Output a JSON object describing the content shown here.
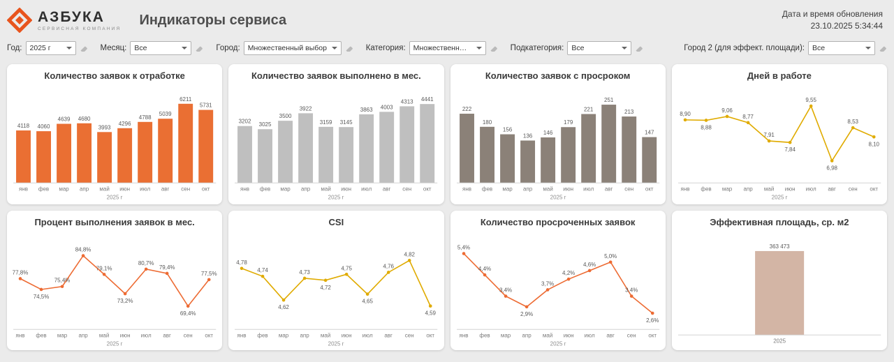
{
  "header": {
    "logo_title": "АЗБУКА",
    "logo_subtitle": "СЕРВИСНАЯ КОМПАНИЯ",
    "page_title": "Индикаторы сервиса",
    "update_label": "Дата и время обновления",
    "update_timestamp": "23.10.2025  5:34:44"
  },
  "filters": [
    {
      "label": "Год:",
      "value": "2025 г"
    },
    {
      "label": "Месяц:",
      "value": "Все"
    },
    {
      "label": "Город:",
      "value": "Множественный выбор"
    },
    {
      "label": "Категория:",
      "value": "Множественный ..."
    },
    {
      "label": "Подкатегория:",
      "value": "Все"
    },
    {
      "label": "Город 2 (для эффект. площади):",
      "value": "Все"
    }
  ],
  "colors": {
    "accent_orange": "#e8541d",
    "bar_orange": "#ea6f33",
    "bar_gray": "#bfbfbf",
    "bar_taupe": "#8b8178",
    "line_gold": "#e0ab00",
    "line_orange": "#ed6b33",
    "bar_tan": "#d3b5a5"
  },
  "chart_data": [
    {
      "type": "bar",
      "title": "Количество заявок к отработке",
      "categories": [
        "янв",
        "фев",
        "мар",
        "апр",
        "май",
        "июн",
        "июл",
        "авг",
        "сен",
        "окт"
      ],
      "values": [
        4118,
        4060,
        4639,
        4680,
        3993,
        4296,
        4788,
        5039,
        6211,
        5731
      ],
      "value_labels": [
        "4118",
        "4060",
        "4639",
        "4680",
        "3993",
        "4296",
        "4788",
        "5039",
        "6211",
        "5731"
      ],
      "xlabel": "2025 г",
      "color": "#ea6f33",
      "ylim": [
        0,
        6900
      ]
    },
    {
      "type": "bar",
      "title": "Количество заявок выполнено в мес.",
      "categories": [
        "янв",
        "фев",
        "мар",
        "апр",
        "май",
        "июн",
        "июл",
        "авг",
        "сен",
        "окт"
      ],
      "values": [
        3202,
        3025,
        3500,
        3922,
        3159,
        3145,
        3863,
        4003,
        4313,
        4441
      ],
      "value_labels": [
        "3202",
        "3025",
        "3500",
        "3922",
        "3159",
        "3145",
        "3863",
        "4003",
        "4313",
        "4441"
      ],
      "xlabel": "2025 г",
      "color": "#bfbfbf",
      "ylim": [
        0,
        4950
      ]
    },
    {
      "type": "bar",
      "title": "Количество заявок с просроком",
      "categories": [
        "янв",
        "фев",
        "мар",
        "апр",
        "май",
        "июн",
        "июл",
        "авг",
        "сен",
        "окт"
      ],
      "values": [
        222,
        180,
        156,
        136,
        146,
        179,
        221,
        251,
        213,
        147
      ],
      "value_labels": [
        "222",
        "180",
        "156",
        "136",
        "146",
        "179",
        "221",
        "251",
        "213",
        "147"
      ],
      "xlabel": "2025 г",
      "color": "#8b8178",
      "ylim": [
        0,
        282
      ]
    },
    {
      "type": "line",
      "title": "Дней в работе",
      "categories": [
        "янв",
        "фев",
        "мар",
        "апр",
        "май",
        "июн",
        "июл",
        "авг",
        "сен",
        "окт"
      ],
      "values": [
        8.9,
        8.88,
        9.06,
        8.77,
        7.91,
        7.84,
        9.55,
        6.98,
        8.53,
        8.1
      ],
      "value_labels": [
        "8,90",
        "8,88",
        "9,06",
        "8,77",
        "7,91",
        "7,84",
        "9,55",
        "6,98",
        "8,53",
        "8,10"
      ],
      "xlabel": "2025 г",
      "color": "#e0ab00",
      "ylim": [
        6.2,
        10.2
      ]
    },
    {
      "type": "line",
      "title": "Процент выполнения заявок в мес.",
      "categories": [
        "янв",
        "фев",
        "мар",
        "апр",
        "май",
        "июн",
        "июл",
        "авг",
        "сен",
        "окт"
      ],
      "values": [
        77.8,
        74.5,
        75.4,
        84.8,
        79.1,
        73.2,
        80.7,
        79.4,
        69.4,
        77.5
      ],
      "value_labels": [
        "77,8%",
        "74,5%",
        "75,4%",
        "84,8%",
        "79,1%",
        "73,2%",
        "80,7%",
        "79,4%",
        "69,4%",
        "77,5%"
      ],
      "xlabel": "2025 г",
      "color": "#ed6b33",
      "ylim": [
        64,
        90
      ]
    },
    {
      "type": "line",
      "title": "CSI",
      "categories": [
        "янв",
        "фев",
        "мар",
        "апр",
        "май",
        "июн",
        "июл",
        "авг",
        "сен",
        "окт"
      ],
      "values": [
        4.78,
        4.74,
        4.62,
        4.73,
        4.72,
        4.75,
        4.65,
        4.76,
        4.82,
        4.59
      ],
      "value_labels": [
        "4,78",
        "4,74",
        "4,62",
        "4,73",
        "4,72",
        "4,75",
        "4,65",
        "4,76",
        "4,82",
        "4,59"
      ],
      "xlabel": "2025 г",
      "color": "#e0ab00",
      "ylim": [
        4.5,
        4.93
      ]
    },
    {
      "type": "line",
      "title": "Количество просроченных заявок",
      "categories": [
        "янв",
        "фев",
        "мар",
        "апр",
        "май",
        "июн",
        "июл",
        "авг",
        "сен",
        "окт"
      ],
      "values": [
        5.4,
        4.4,
        3.4,
        2.9,
        3.7,
        4.2,
        4.6,
        5.0,
        3.4,
        2.6
      ],
      "value_labels": [
        "5,4%",
        "4,4%",
        "3,4%",
        "2,9%",
        "3,7%",
        "4,2%",
        "4,6%",
        "5,0%",
        "3,4%",
        "2,6%"
      ],
      "xlabel": "2025 г",
      "color": "#ed6b33",
      "ylim": [
        2.1,
        6.1
      ]
    },
    {
      "type": "bar",
      "title": "Эффективная площадь, ср. м2",
      "categories": [
        "2025"
      ],
      "values": [
        363473
      ],
      "value_labels": [
        "363 473"
      ],
      "xlabel": "",
      "color": "#d3b5a5",
      "ylim": [
        0,
        405000
      ]
    }
  ]
}
